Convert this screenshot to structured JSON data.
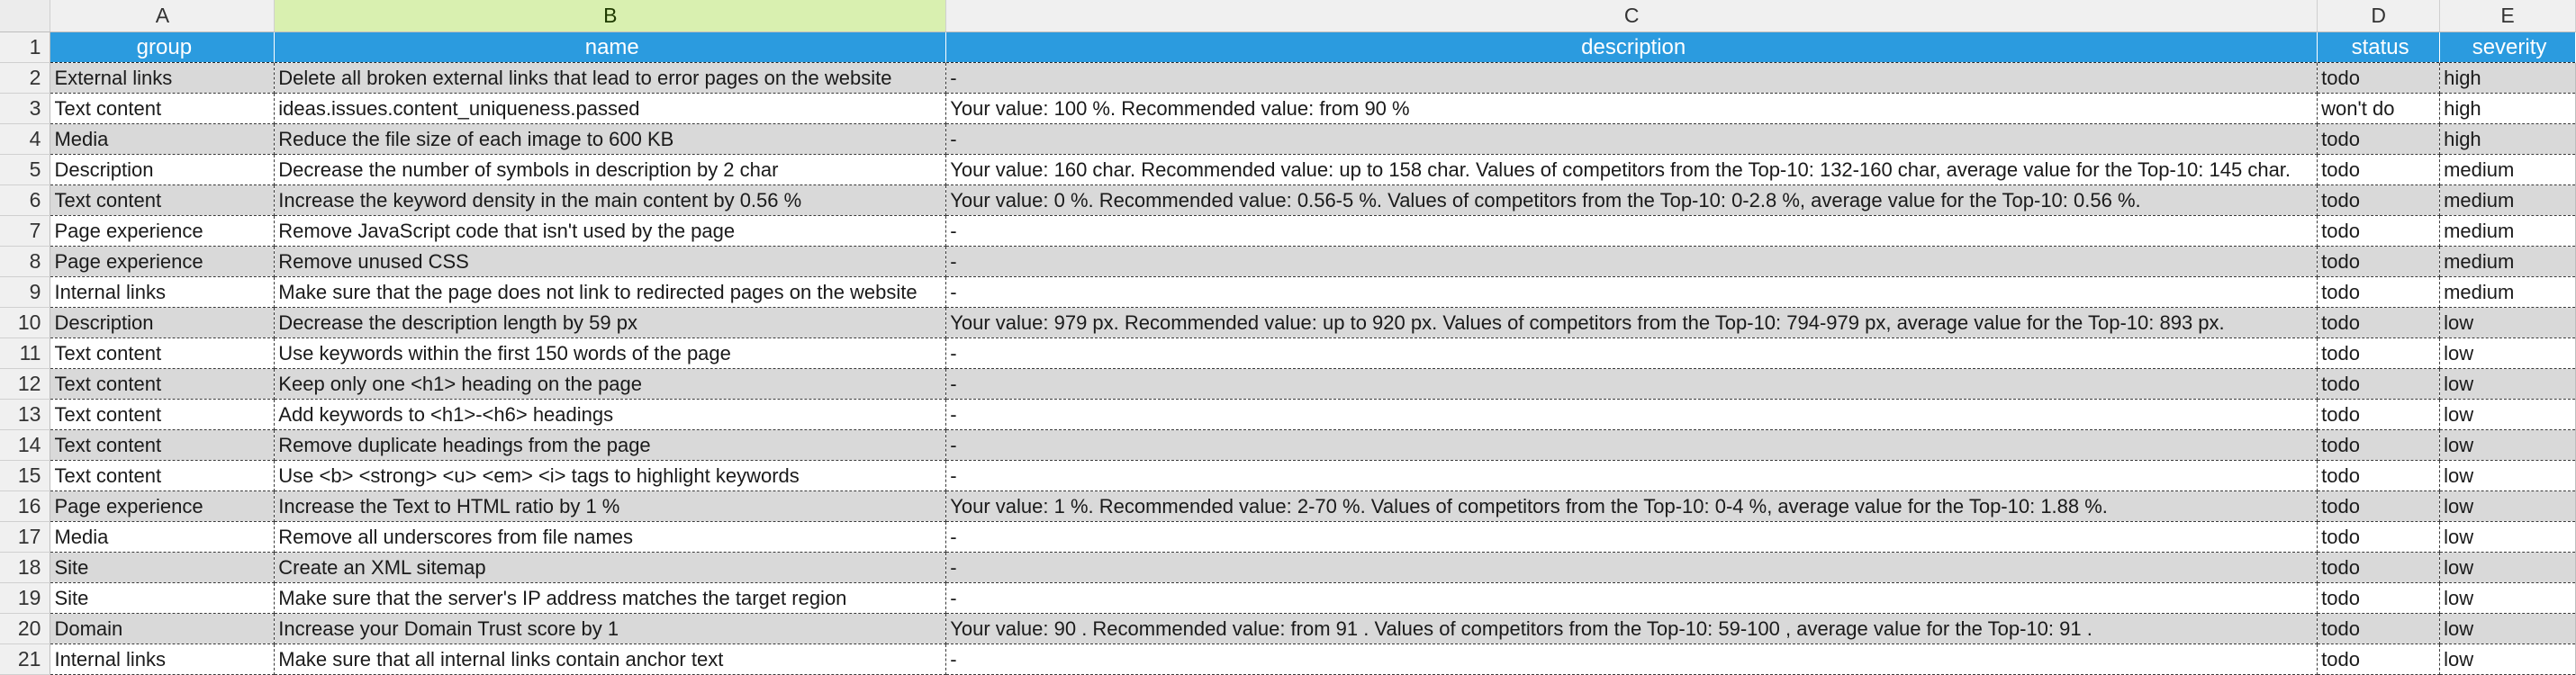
{
  "sheet": {
    "column_letters": [
      "A",
      "B",
      "C",
      "D",
      "E"
    ],
    "header": {
      "row_number": "1",
      "labels": [
        "group",
        "name",
        "description",
        "status",
        "severity"
      ]
    },
    "rows": [
      {
        "num": "2",
        "group": "External links",
        "name": "Delete all broken external links that lead to error pages on the website",
        "description": "-",
        "status": "todo",
        "severity": "high"
      },
      {
        "num": "3",
        "group": "Text content",
        "name": "ideas.issues.content_uniqueness.passed",
        "description": "Your value: 100 %. Recommended value: from 90 %",
        "status": "won't do",
        "severity": "high"
      },
      {
        "num": "4",
        "group": "Media",
        "name": "Reduce the file size of each image to 600 KB",
        "description": "-",
        "status": "todo",
        "severity": "high"
      },
      {
        "num": "5",
        "group": "Description",
        "name": "Decrease the number of symbols in description by 2 char",
        "description": "Your value: 160 char. Recommended value: up to 158 char. Values of competitors from the Top-10: 132-160 char, average value for the Top-10: 145 char.",
        "status": "todo",
        "severity": "medium"
      },
      {
        "num": "6",
        "group": "Text content",
        "name": "Increase the keyword density in the main content by 0.56 %",
        "description": "Your value: 0 %. Recommended value: 0.56-5 %. Values of competitors from the Top-10: 0-2.8 %, average value for the Top-10: 0.56 %.",
        "status": "todo",
        "severity": "medium"
      },
      {
        "num": "7",
        "group": "Page experience",
        "name": "Remove JavaScript code that isn't used by the page",
        "description": "-",
        "status": "todo",
        "severity": "medium"
      },
      {
        "num": "8",
        "group": "Page experience",
        "name": "Remove unused CSS",
        "description": "-",
        "status": "todo",
        "severity": "medium"
      },
      {
        "num": "9",
        "group": "Internal links",
        "name": "Make sure that the page does not link to redirected pages on the website",
        "description": "-",
        "status": "todo",
        "severity": "medium"
      },
      {
        "num": "10",
        "group": "Description",
        "name": "Decrease the description length by 59 px",
        "description": "Your value: 979 px. Recommended value: up to 920 px. Values of competitors from the Top-10: 794-979 px, average value for the Top-10: 893 px.",
        "status": "todo",
        "severity": "low"
      },
      {
        "num": "11",
        "group": "Text content",
        "name": "Use keywords within the first 150 words of the page",
        "description": "-",
        "status": "todo",
        "severity": "low"
      },
      {
        "num": "12",
        "group": "Text content",
        "name": "Keep only one <h1> heading on the page",
        "description": "-",
        "status": "todo",
        "severity": "low"
      },
      {
        "num": "13",
        "group": "Text content",
        "name": "Add keywords to <h1>-<h6> headings",
        "description": "-",
        "status": "todo",
        "severity": "low"
      },
      {
        "num": "14",
        "group": "Text content",
        "name": "Remove duplicate headings from the page",
        "description": "-",
        "status": "todo",
        "severity": "low"
      },
      {
        "num": "15",
        "group": "Text content",
        "name": "Use <b> <strong> <u> <em> <i> tags to highlight keywords",
        "description": "-",
        "status": "todo",
        "severity": "low"
      },
      {
        "num": "16",
        "group": "Page experience",
        "name": "Increase the Text to HTML ratio by 1 %",
        "description": "Your value: 1 %. Recommended value: 2-70 %. Values of competitors from the Top-10: 0-4 %, average value for the Top-10: 1.88 %.",
        "status": "todo",
        "severity": "low"
      },
      {
        "num": "17",
        "group": "Media",
        "name": "Remove all underscores from file names",
        "description": "-",
        "status": "todo",
        "severity": "low"
      },
      {
        "num": "18",
        "group": "Site",
        "name": "Create an XML sitemap",
        "description": "-",
        "status": "todo",
        "severity": "low"
      },
      {
        "num": "19",
        "group": "Site",
        "name": "Make sure that the server's IP address matches the target region",
        "description": "-",
        "status": "todo",
        "severity": "low"
      },
      {
        "num": "20",
        "group": "Domain",
        "name": "Increase your Domain Trust score by 1",
        "description": "Your value: 90 . Recommended value: from 91 . Values of competitors from the Top-10: 59-100 , average value for the Top-10: 91 .",
        "status": "todo",
        "severity": "low"
      },
      {
        "num": "21",
        "group": "Internal links",
        "name": "Make sure that all internal links contain anchor text",
        "description": "-",
        "status": "todo",
        "severity": "low"
      }
    ]
  },
  "colors": {
    "header_fill": "#2b9bdf",
    "selected_column_header": "#d9f0b0",
    "band_fill": "#d9d9d9"
  }
}
